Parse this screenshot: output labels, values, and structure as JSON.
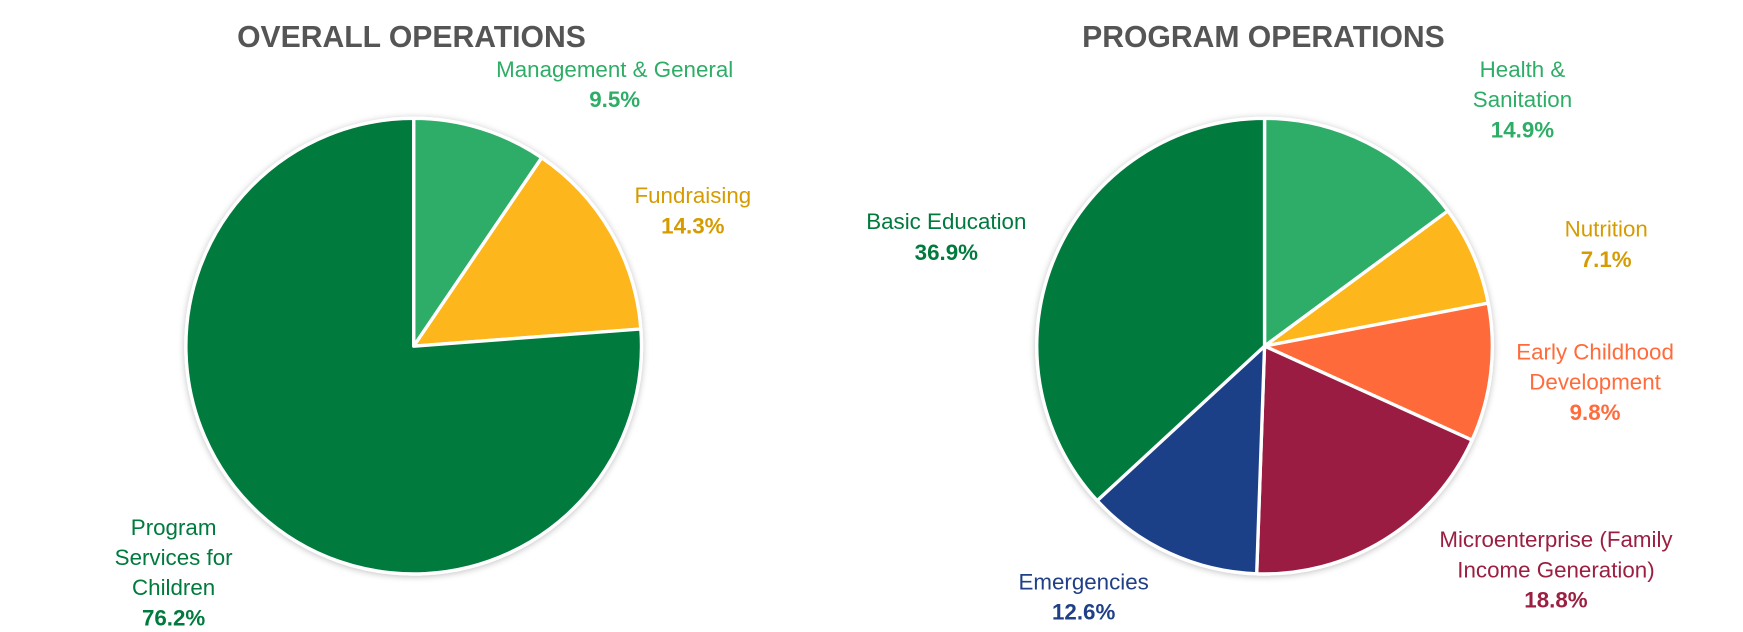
{
  "chart_data": [
    {
      "type": "pie",
      "title": "OVERALL OPERATIONS",
      "slices": [
        {
          "label": "Management & General",
          "label_lines": [
            "Management & General"
          ],
          "value": 9.5,
          "value_label": "9.5%",
          "color": "#2EAD67",
          "text_color": "#2EAD67"
        },
        {
          "label": "Fundraising",
          "label_lines": [
            "Fundraising"
          ],
          "value": 14.3,
          "value_label": "14.3%",
          "color": "#FDB71A",
          "text_color": "#D59B00"
        },
        {
          "label": "Program Services for Children",
          "label_lines": [
            "Program",
            "Services for",
            "Children"
          ],
          "value": 76.2,
          "value_label": "76.2%",
          "color": "#007A3D",
          "text_color": "#007A3D"
        }
      ]
    },
    {
      "type": "pie",
      "title": "PROGRAM OPERATIONS",
      "slices": [
        {
          "label": "Health & Sanitation",
          "label_lines": [
            "Health &",
            "Sanitation"
          ],
          "value": 14.9,
          "value_label": "14.9%",
          "color": "#2EAD67",
          "text_color": "#2EAD67"
        },
        {
          "label": "Nutrition",
          "label_lines": [
            "Nutrition"
          ],
          "value": 7.1,
          "value_label": "7.1%",
          "color": "#FDB71A",
          "text_color": "#D59B00"
        },
        {
          "label": "Early Childhood Development",
          "label_lines": [
            "Early Childhood",
            "Development"
          ],
          "value": 9.8,
          "value_label": "9.8%",
          "color": "#FF6B3A",
          "text_color": "#FF6B3A"
        },
        {
          "label": "Microenterprise (Family Income Generation)",
          "label_lines": [
            "Microenterprise (Family",
            "Income Generation)"
          ],
          "value": 18.8,
          "value_label": "18.8%",
          "color": "#9B1F42",
          "text_color": "#9B1F42"
        },
        {
          "label": "Emergencies",
          "label_lines": [
            "Emergencies"
          ],
          "value": 12.6,
          "value_label": "12.6%",
          "color": "#1F3F87",
          "text_color": "#1F3F87"
        },
        {
          "label": "Basic Education",
          "label_lines": [
            "Basic Education"
          ],
          "value": 36.9,
          "value_label": "36.9%",
          "color": "#007A3D",
          "text_color": "#007A3D"
        }
      ]
    }
  ]
}
